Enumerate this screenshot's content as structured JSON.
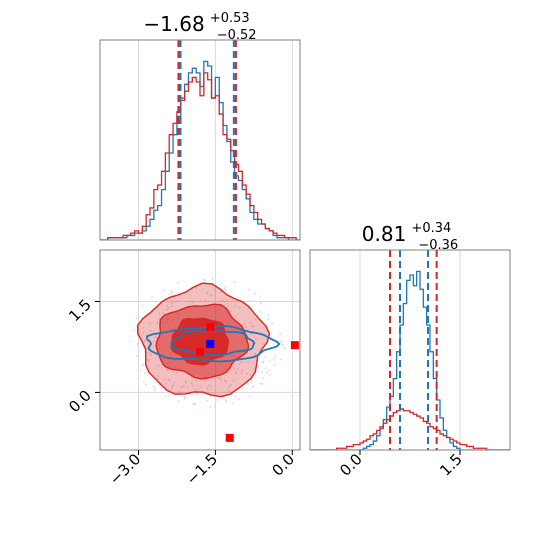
{
  "chart_data": [
    {
      "type": "histogram",
      "panel": "marginal-x",
      "title": {
        "value": "−1.68",
        "upper": "+0.53",
        "lower": "−0.52"
      },
      "xlim": [
        -3.75,
        0.15
      ],
      "bin_width": 0.075,
      "quantile_lines": {
        "blue": [
          -2.18,
          -1.14
        ],
        "red": [
          -2.22,
          -1.1
        ]
      },
      "series": [
        {
          "color": "#1f77b4",
          "counts": [
            0,
            0,
            1,
            1,
            1,
            1,
            1,
            2,
            2,
            3,
            3,
            4,
            6,
            9,
            13,
            15,
            22,
            30,
            38,
            46,
            54,
            62,
            68,
            73,
            75,
            73,
            67,
            78,
            76,
            62,
            71,
            60,
            50,
            43,
            34,
            28,
            26,
            22,
            18,
            12,
            9,
            7,
            7,
            5,
            4,
            2,
            1,
            1,
            1,
            0,
            0,
            0
          ]
        },
        {
          "color": "#d62728",
          "counts": [
            0,
            0,
            1,
            1,
            1,
            1,
            2,
            2,
            3,
            4,
            3,
            6,
            11,
            14,
            22,
            24,
            30,
            38,
            46,
            51,
            56,
            61,
            65,
            69,
            71,
            69,
            63,
            73,
            70,
            62,
            63,
            55,
            46,
            44,
            39,
            33,
            30,
            24,
            20,
            15,
            12,
            9,
            7,
            5,
            4,
            3,
            2,
            2,
            1,
            1,
            1,
            0
          ]
        }
      ]
    },
    {
      "type": "histogram",
      "panel": "marginal-y",
      "title": {
        "value": "0.81",
        "upper": "+0.34",
        "lower": "−0.36"
      },
      "xlim": [
        -0.75,
        2.25
      ],
      "xticks": [
        "0.0",
        "1.5"
      ],
      "bin_width": 0.05,
      "quantile_lines": {
        "blue": [
          0.6,
          1.02
        ],
        "red": [
          0.45,
          1.15
        ]
      },
      "series": [
        {
          "color": "#1f77b4",
          "counts": [
            0,
            0,
            0,
            0,
            0,
            0,
            0,
            0,
            0,
            0,
            0,
            0,
            0,
            0,
            0,
            0,
            1,
            2,
            3,
            5,
            8,
            12,
            17,
            24,
            30,
            40,
            55,
            70,
            82,
            95,
            98,
            92,
            100,
            90,
            80,
            70,
            55,
            40,
            28,
            18,
            11,
            7,
            4,
            2,
            1,
            0,
            0,
            0,
            0,
            0,
            0,
            0,
            0,
            0,
            0,
            0,
            0,
            0,
            0,
            0
          ]
        },
        {
          "color": "#d62728",
          "counts": [
            0,
            0,
            0,
            0,
            0,
            0,
            0,
            0,
            1,
            1,
            1,
            2,
            2,
            3,
            3,
            4,
            5,
            6,
            8,
            9,
            11,
            13,
            15,
            17,
            19,
            21,
            22,
            23,
            22,
            22,
            21,
            20,
            19,
            18,
            16,
            15,
            13,
            12,
            11,
            9,
            8,
            7,
            6,
            5,
            4,
            3,
            3,
            2,
            2,
            1,
            1,
            1,
            1,
            0,
            0,
            0,
            0,
            0,
            0,
            0
          ]
        }
      ]
    },
    {
      "type": "contour",
      "panel": "joint",
      "xlim": [
        -3.75,
        0.15
      ],
      "ylim": [
        -0.95,
        2.35
      ],
      "xticks": [
        "−3.0",
        "−1.5",
        "0.0"
      ],
      "yticks": [
        "0.0",
        "1.5"
      ],
      "red_levels": [
        {
          "cx": -1.75,
          "cy": 0.83,
          "rx": 1.22,
          "ry": 0.9
        },
        {
          "cx": -1.78,
          "cy": 0.85,
          "rx": 0.88,
          "ry": 0.6
        },
        {
          "cx": -1.8,
          "cy": 0.85,
          "rx": 0.55,
          "ry": 0.38
        }
      ],
      "blue_levels": [
        {
          "cx": -1.6,
          "cy": 0.8,
          "rx": 1.25,
          "ry": 0.28
        },
        {
          "cx": -1.55,
          "cy": 0.82,
          "rx": 0.8,
          "ry": 0.2
        }
      ],
      "markers": {
        "red": [
          [
            -1.6,
            1.08
          ],
          [
            -1.8,
            0.67
          ],
          [
            -1.22,
            -0.75
          ],
          [
            0.05,
            0.78
          ]
        ],
        "blue": [
          [
            -1.6,
            0.8
          ]
        ]
      }
    }
  ]
}
